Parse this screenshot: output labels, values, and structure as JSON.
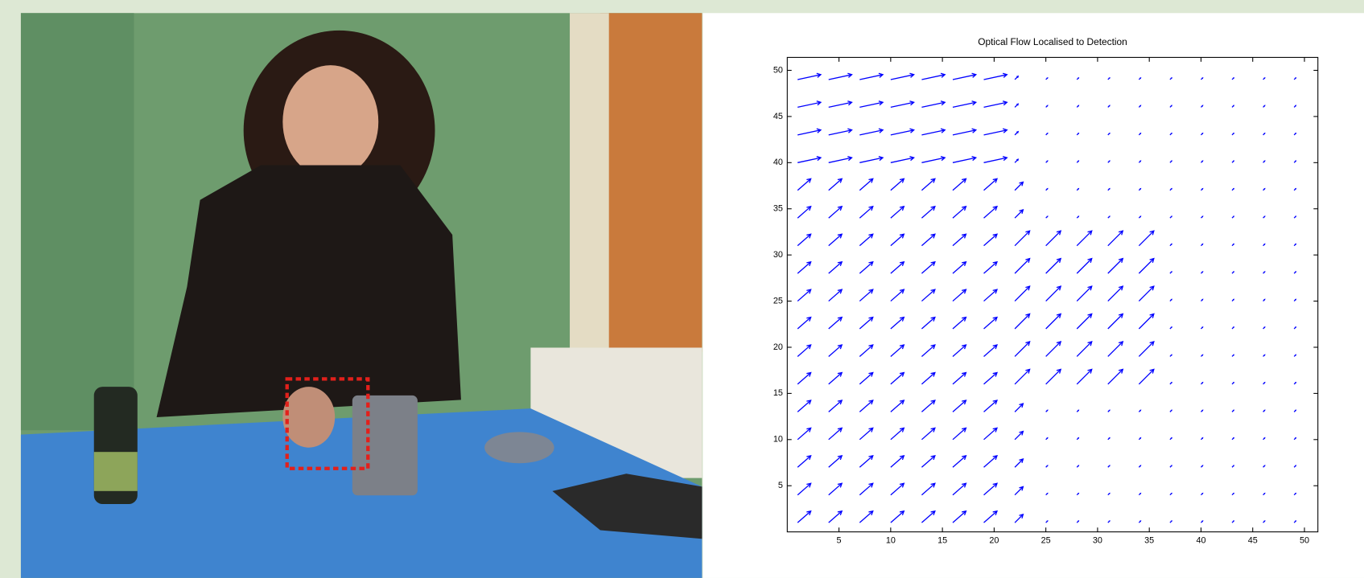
{
  "chart_data": {
    "type": "quiver",
    "title": "Optical Flow Localised to Detection",
    "x": [
      1,
      4,
      7,
      10,
      13,
      16,
      19,
      22,
      25,
      28,
      31,
      34,
      37,
      40,
      43,
      46,
      49
    ],
    "y": [
      1,
      4,
      7,
      10,
      13,
      16,
      19,
      22,
      25,
      28,
      31,
      34,
      37,
      40,
      43,
      46,
      49
    ],
    "u": [
      [
        0.8,
        0.8,
        0.8,
        0.8,
        0.8,
        0.8,
        0.8,
        0.5,
        0.1,
        0.1,
        0.1,
        0.1,
        0.1,
        0.1,
        0.1,
        0.1,
        0.1
      ],
      [
        0.8,
        0.8,
        0.8,
        0.8,
        0.8,
        0.8,
        0.8,
        0.5,
        0.1,
        0.1,
        0.1,
        0.1,
        0.1,
        0.1,
        0.1,
        0.1,
        0.1
      ],
      [
        0.8,
        0.8,
        0.8,
        0.8,
        0.8,
        0.8,
        0.8,
        0.5,
        0.1,
        0.1,
        0.1,
        0.1,
        0.1,
        0.1,
        0.1,
        0.1,
        0.1
      ],
      [
        0.8,
        0.8,
        0.8,
        0.8,
        0.8,
        0.8,
        0.8,
        0.5,
        0.1,
        0.1,
        0.1,
        0.1,
        0.1,
        0.1,
        0.1,
        0.1,
        0.1
      ],
      [
        0.8,
        0.8,
        0.8,
        0.8,
        0.8,
        0.8,
        0.8,
        0.5,
        0.1,
        0.1,
        0.1,
        0.1,
        0.1,
        0.1,
        0.1,
        0.1,
        0.1
      ],
      [
        0.8,
        0.8,
        0.8,
        0.8,
        0.8,
        0.8,
        0.8,
        0.9,
        0.9,
        0.9,
        0.9,
        0.9,
        0.1,
        0.1,
        0.1,
        0.1,
        0.1
      ],
      [
        0.8,
        0.8,
        0.8,
        0.8,
        0.8,
        0.8,
        0.8,
        0.9,
        0.9,
        0.9,
        0.9,
        0.9,
        0.1,
        0.1,
        0.1,
        0.1,
        0.1
      ],
      [
        0.8,
        0.8,
        0.8,
        0.8,
        0.8,
        0.8,
        0.8,
        0.9,
        0.9,
        0.9,
        0.9,
        0.9,
        0.1,
        0.1,
        0.1,
        0.1,
        0.1
      ],
      [
        0.8,
        0.8,
        0.8,
        0.8,
        0.8,
        0.8,
        0.8,
        0.9,
        0.9,
        0.9,
        0.9,
        0.9,
        0.1,
        0.1,
        0.1,
        0.1,
        0.1
      ],
      [
        0.8,
        0.8,
        0.8,
        0.8,
        0.8,
        0.8,
        0.8,
        0.9,
        0.9,
        0.9,
        0.9,
        0.9,
        0.1,
        0.1,
        0.1,
        0.1,
        0.1
      ],
      [
        0.8,
        0.8,
        0.8,
        0.8,
        0.8,
        0.8,
        0.8,
        0.9,
        0.9,
        0.9,
        0.9,
        0.9,
        0.1,
        0.1,
        0.1,
        0.1,
        0.1
      ],
      [
        0.8,
        0.8,
        0.8,
        0.8,
        0.8,
        0.8,
        0.8,
        0.5,
        0.1,
        0.1,
        0.1,
        0.1,
        0.1,
        0.1,
        0.1,
        0.1,
        0.1
      ],
      [
        0.8,
        0.8,
        0.8,
        0.8,
        0.8,
        0.8,
        0.8,
        0.5,
        0.1,
        0.1,
        0.1,
        0.1,
        0.1,
        0.1,
        0.1,
        0.1,
        0.1
      ],
      [
        1.4,
        1.4,
        1.4,
        1.4,
        1.4,
        1.4,
        1.4,
        0.2,
        0.1,
        0.1,
        0.1,
        0.1,
        0.1,
        0.1,
        0.1,
        0.1,
        0.1
      ],
      [
        1.4,
        1.4,
        1.4,
        1.4,
        1.4,
        1.4,
        1.4,
        0.2,
        0.1,
        0.1,
        0.1,
        0.1,
        0.1,
        0.1,
        0.1,
        0.1,
        0.1
      ],
      [
        1.4,
        1.4,
        1.4,
        1.4,
        1.4,
        1.4,
        1.4,
        0.2,
        0.1,
        0.1,
        0.1,
        0.1,
        0.1,
        0.1,
        0.1,
        0.1,
        0.1
      ],
      [
        1.4,
        1.4,
        1.4,
        1.4,
        1.4,
        1.4,
        1.4,
        0.2,
        0.1,
        0.1,
        0.1,
        0.1,
        0.1,
        0.1,
        0.1,
        0.1,
        0.1
      ]
    ],
    "v": [
      [
        0.7,
        0.7,
        0.7,
        0.7,
        0.7,
        0.7,
        0.7,
        0.5,
        0.1,
        0.1,
        0.1,
        0.1,
        0.1,
        0.1,
        0.1,
        0.1,
        0.1
      ],
      [
        0.7,
        0.7,
        0.7,
        0.7,
        0.7,
        0.7,
        0.7,
        0.5,
        0.1,
        0.1,
        0.1,
        0.1,
        0.1,
        0.1,
        0.1,
        0.1,
        0.1
      ],
      [
        0.7,
        0.7,
        0.7,
        0.7,
        0.7,
        0.7,
        0.7,
        0.5,
        0.1,
        0.1,
        0.1,
        0.1,
        0.1,
        0.1,
        0.1,
        0.1,
        0.1
      ],
      [
        0.7,
        0.7,
        0.7,
        0.7,
        0.7,
        0.7,
        0.7,
        0.5,
        0.1,
        0.1,
        0.1,
        0.1,
        0.1,
        0.1,
        0.1,
        0.1,
        0.1
      ],
      [
        0.7,
        0.7,
        0.7,
        0.7,
        0.7,
        0.7,
        0.7,
        0.5,
        0.1,
        0.1,
        0.1,
        0.1,
        0.1,
        0.1,
        0.1,
        0.1,
        0.1
      ],
      [
        0.7,
        0.7,
        0.7,
        0.7,
        0.7,
        0.7,
        0.7,
        0.9,
        0.9,
        0.9,
        0.9,
        0.9,
        0.1,
        0.1,
        0.1,
        0.1,
        0.1
      ],
      [
        0.7,
        0.7,
        0.7,
        0.7,
        0.7,
        0.7,
        0.7,
        0.9,
        0.9,
        0.9,
        0.9,
        0.9,
        0.1,
        0.1,
        0.1,
        0.1,
        0.1
      ],
      [
        0.7,
        0.7,
        0.7,
        0.7,
        0.7,
        0.7,
        0.7,
        0.9,
        0.9,
        0.9,
        0.9,
        0.9,
        0.1,
        0.1,
        0.1,
        0.1,
        0.1
      ],
      [
        0.7,
        0.7,
        0.7,
        0.7,
        0.7,
        0.7,
        0.7,
        0.9,
        0.9,
        0.9,
        0.9,
        0.9,
        0.1,
        0.1,
        0.1,
        0.1,
        0.1
      ],
      [
        0.7,
        0.7,
        0.7,
        0.7,
        0.7,
        0.7,
        0.7,
        0.9,
        0.9,
        0.9,
        0.9,
        0.9,
        0.1,
        0.1,
        0.1,
        0.1,
        0.1
      ],
      [
        0.7,
        0.7,
        0.7,
        0.7,
        0.7,
        0.7,
        0.7,
        0.9,
        0.9,
        0.9,
        0.9,
        0.9,
        0.1,
        0.1,
        0.1,
        0.1,
        0.1
      ],
      [
        0.7,
        0.7,
        0.7,
        0.7,
        0.7,
        0.7,
        0.7,
        0.5,
        0.1,
        0.1,
        0.1,
        0.1,
        0.1,
        0.1,
        0.1,
        0.1,
        0.1
      ],
      [
        0.7,
        0.7,
        0.7,
        0.7,
        0.7,
        0.7,
        0.7,
        0.5,
        0.1,
        0.1,
        0.1,
        0.1,
        0.1,
        0.1,
        0.1,
        0.1,
        0.1
      ],
      [
        0.3,
        0.3,
        0.3,
        0.3,
        0.3,
        0.3,
        0.3,
        0.2,
        0.1,
        0.1,
        0.1,
        0.1,
        0.1,
        0.1,
        0.1,
        0.1,
        0.1
      ],
      [
        0.3,
        0.3,
        0.3,
        0.3,
        0.3,
        0.3,
        0.3,
        0.2,
        0.1,
        0.1,
        0.1,
        0.1,
        0.1,
        0.1,
        0.1,
        0.1,
        0.1
      ],
      [
        0.3,
        0.3,
        0.3,
        0.3,
        0.3,
        0.3,
        0.3,
        0.2,
        0.1,
        0.1,
        0.1,
        0.1,
        0.1,
        0.1,
        0.1,
        0.1,
        0.1
      ],
      [
        0.3,
        0.3,
        0.3,
        0.3,
        0.3,
        0.3,
        0.3,
        0.2,
        0.1,
        0.1,
        0.1,
        0.1,
        0.1,
        0.1,
        0.1,
        0.1,
        0.1
      ]
    ],
    "color": "#0000ff",
    "xlim": [
      0,
      51.3
    ],
    "ylim": [
      0,
      51.4
    ],
    "xticks": [
      5,
      10,
      15,
      20,
      25,
      30,
      35,
      40,
      45,
      50
    ],
    "yticks": [
      5,
      10,
      15,
      20,
      25,
      30,
      35,
      40,
      45,
      50
    ]
  }
}
